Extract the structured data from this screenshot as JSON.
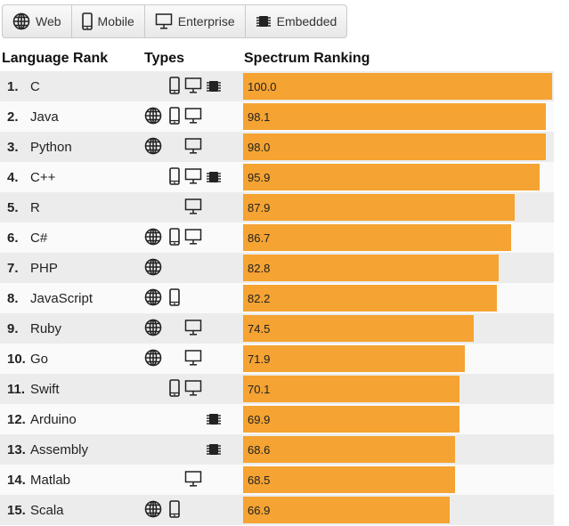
{
  "filters": [
    {
      "label": "Web",
      "icon": "globe-icon"
    },
    {
      "label": "Mobile",
      "icon": "mobile-icon"
    },
    {
      "label": "Enterprise",
      "icon": "monitor-icon"
    },
    {
      "label": "Embedded",
      "icon": "chip-icon"
    }
  ],
  "headers": {
    "rank": "Language Rank",
    "types": "Types",
    "spectrum": "Spectrum Ranking"
  },
  "colors": {
    "bar": "#f5a332",
    "row_odd": "#ececec",
    "row_even": "#fafafa"
  },
  "chart_data": {
    "type": "bar",
    "orientation": "horizontal",
    "xlim": [
      0,
      100
    ],
    "categories": [
      "C",
      "Java",
      "Python",
      "C++",
      "R",
      "C#",
      "PHP",
      "JavaScript",
      "Ruby",
      "Go",
      "Swift",
      "Arduino",
      "Assembly",
      "Matlab",
      "Scala"
    ],
    "values": [
      100.0,
      98.1,
      98.0,
      95.9,
      87.9,
      86.7,
      82.8,
      82.2,
      74.5,
      71.9,
      70.1,
      69.9,
      68.6,
      68.5,
      66.9
    ],
    "value_labels": [
      "100.0",
      "98.1",
      "98.0",
      "95.9",
      "87.9",
      "86.7",
      "82.8",
      "82.2",
      "74.5",
      "71.9",
      "70.1",
      "69.9",
      "68.6",
      "68.5",
      "66.9"
    ],
    "ranks": [
      "1.",
      "2.",
      "3.",
      "4.",
      "5.",
      "6.",
      "7.",
      "8.",
      "9.",
      "10.",
      "11.",
      "12.",
      "13.",
      "14.",
      "15."
    ],
    "types": [
      [
        "mobile",
        "enterprise",
        "embedded"
      ],
      [
        "web",
        "mobile",
        "enterprise"
      ],
      [
        "web",
        "enterprise"
      ],
      [
        "mobile",
        "enterprise",
        "embedded"
      ],
      [
        "enterprise"
      ],
      [
        "web",
        "mobile",
        "enterprise"
      ],
      [
        "web"
      ],
      [
        "web",
        "mobile"
      ],
      [
        "web",
        "enterprise"
      ],
      [
        "web",
        "enterprise"
      ],
      [
        "mobile",
        "enterprise"
      ],
      [
        "embedded"
      ],
      [
        "embedded"
      ],
      [
        "enterprise"
      ],
      [
        "web",
        "mobile"
      ]
    ]
  }
}
